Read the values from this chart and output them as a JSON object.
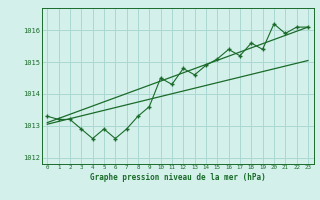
{
  "title": "Graphe pression niveau de la mer (hPa)",
  "background_color": "#d4f0eb",
  "grid_color": "#aad8d2",
  "line_color": "#1a6b2a",
  "text_color": "#1a6b2a",
  "x_values": [
    0,
    1,
    2,
    3,
    4,
    5,
    6,
    7,
    8,
    9,
    10,
    11,
    12,
    13,
    14,
    15,
    16,
    17,
    18,
    19,
    20,
    21,
    22,
    23
  ],
  "y_values": [
    1013.3,
    1013.2,
    1013.2,
    1012.9,
    1012.6,
    1012.9,
    1012.6,
    1012.9,
    1013.3,
    1013.6,
    1014.5,
    1014.3,
    1014.8,
    1014.6,
    1014.9,
    1015.1,
    1015.4,
    1015.2,
    1015.6,
    1015.4,
    1016.2,
    1015.9,
    1016.1,
    1016.1
  ],
  "ylim": [
    1011.8,
    1016.7
  ],
  "yticks": [
    1012,
    1013,
    1014,
    1015,
    1016
  ],
  "xlim": [
    -0.5,
    23.5
  ],
  "trend1_x": [
    0,
    23
  ],
  "trend1_y": [
    1013.1,
    1016.1
  ],
  "trend2_x": [
    0,
    23
  ],
  "trend2_y": [
    1013.05,
    1015.05
  ],
  "fig_width": 3.2,
  "fig_height": 2.0,
  "dpi": 100
}
